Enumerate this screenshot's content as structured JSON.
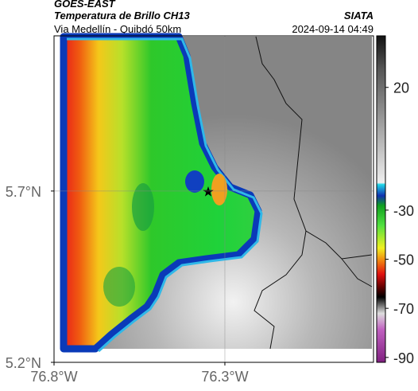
{
  "header": {
    "satellite": "GOES-EAST",
    "product": "Temperatura de Brillo CH13",
    "source": "SIATA",
    "route": "Via Medellín - Quibdó 50km",
    "timestamp": "2024-09-14 04:49"
  },
  "map": {
    "xlim": [
      -76.8,
      -75.865
    ],
    "ylim": [
      5.2,
      6.153
    ],
    "xticks": [
      {
        "value": -76.8,
        "label": "76.8°W"
      },
      {
        "value": -76.3,
        "label": "76.3°W"
      }
    ],
    "yticks": [
      {
        "value": 5.2,
        "label": "5.2°N"
      },
      {
        "value": 5.7,
        "label": "5.7°N"
      }
    ],
    "grid": true
  },
  "colorbar": {
    "clim": [
      -92,
      41
    ],
    "ticks": [
      20,
      -30,
      -50,
      -70,
      -90
    ]
  }
}
